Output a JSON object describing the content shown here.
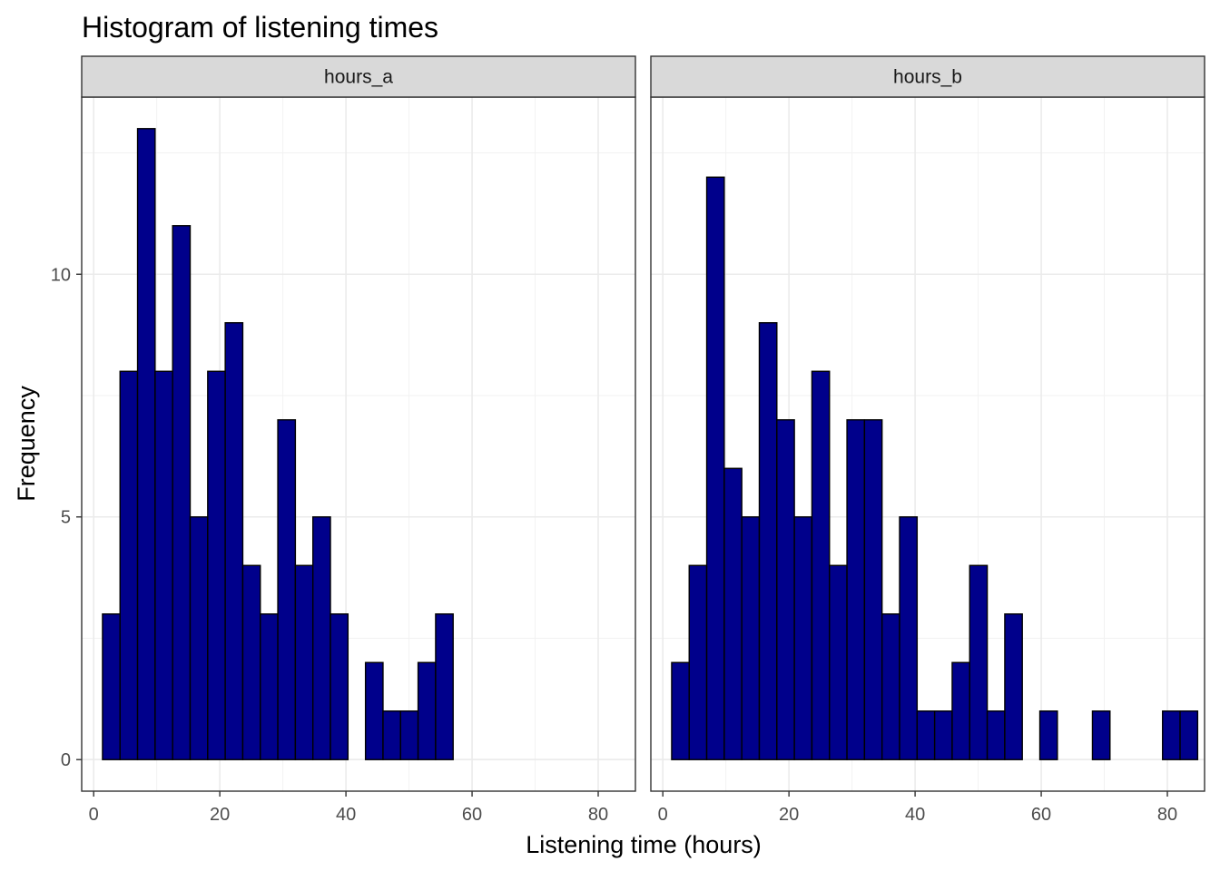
{
  "chart_data": {
    "type": "bar",
    "title": "Histogram of listening times",
    "xlabel": "Listening time (hours)",
    "ylabel": "Frequency",
    "xlim": [
      -1.9,
      85.9
    ],
    "ylim": [
      -0.65,
      13.65
    ],
    "x_ticks": [
      0,
      20,
      40,
      60,
      80
    ],
    "y_ticks": [
      0,
      5,
      10
    ],
    "grid": true,
    "bin_start": 1.4,
    "bin_width": 2.78,
    "fill_color": "#00008B",
    "outline_color": "#000000",
    "panels": [
      {
        "name": "hours_a",
        "values": [
          3,
          8,
          13,
          8,
          11,
          5,
          8,
          9,
          4,
          3,
          7,
          4,
          5,
          3,
          0,
          2,
          1,
          1,
          2,
          3,
          0,
          0,
          0,
          0,
          0,
          0,
          0,
          0,
          0,
          0
        ]
      },
      {
        "name": "hours_b",
        "values": [
          2,
          4,
          12,
          6,
          5,
          9,
          7,
          5,
          8,
          4,
          7,
          7,
          3,
          5,
          1,
          1,
          2,
          4,
          1,
          3,
          0,
          1,
          0,
          0,
          1,
          0,
          0,
          0,
          1,
          1
        ]
      }
    ]
  }
}
